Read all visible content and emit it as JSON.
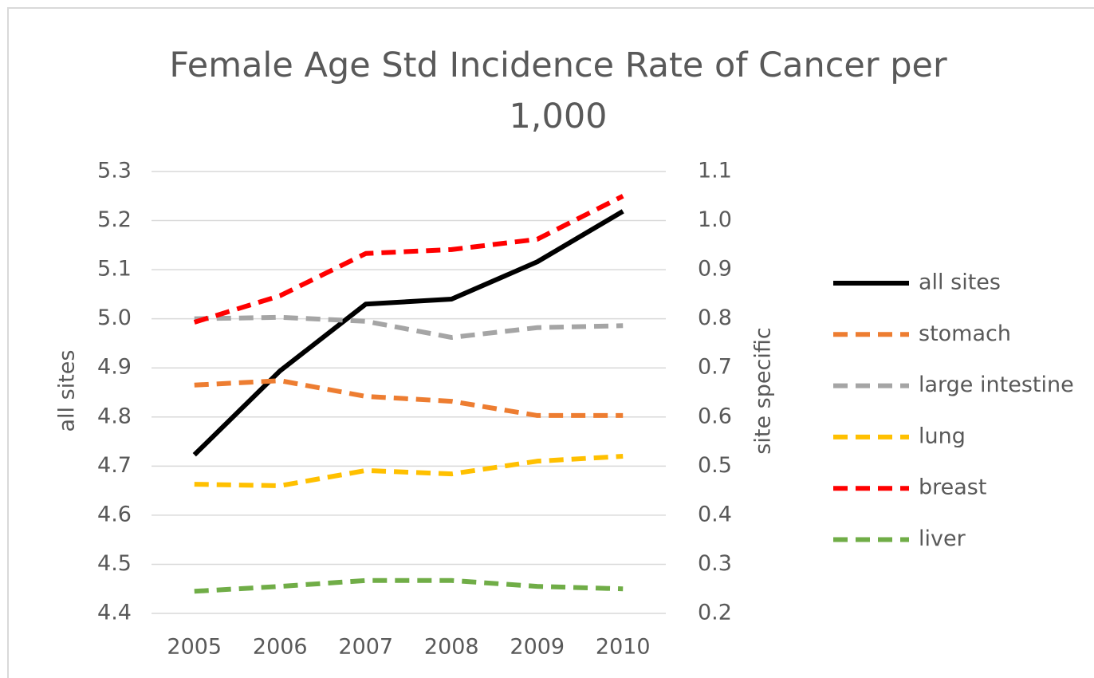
{
  "chart_data": {
    "type": "line",
    "title": "Female Age Std Incidence Rate of Cancer per 1,000",
    "categories": [
      "2005",
      "2006",
      "2007",
      "2008",
      "2009",
      "2010"
    ],
    "ylabel": "all sites",
    "y2label": "site specific",
    "ylim": [
      4.4,
      5.3
    ],
    "yticks": [
      4.4,
      4.5,
      4.6,
      4.7,
      4.8,
      4.9,
      {
        "value": 5,
        "label": "5.0"
      },
      5.1,
      5.2,
      5.3
    ],
    "y2lim": [
      0.2,
      1.1
    ],
    "y2ticks": [
      0.2,
      0.3,
      0.4,
      0.5,
      0.6,
      0.7,
      0.8,
      0.9,
      {
        "value": 1,
        "label": "1.0"
      },
      1.1
    ],
    "grid": true,
    "legend": "right",
    "series": [
      {
        "name": "all sites",
        "color": "#000000",
        "dashed": false,
        "values": [
          4.723,
          4.894,
          5.03,
          5.04,
          5.116,
          5.219
        ]
      },
      {
        "name": "stomach",
        "color": "#ed7d31",
        "dashed": true,
        "axis": "y2",
        "values": [
          0.665,
          0.674,
          0.642,
          0.632,
          0.603,
          0.603
        ]
      },
      {
        "name": "large intestine",
        "color": "#a5a5a5",
        "dashed": true,
        "axis": "y2",
        "values": [
          0.8,
          0.803,
          0.795,
          0.762,
          0.782,
          0.786
        ]
      },
      {
        "name": "lung",
        "color": "#ffc000",
        "dashed": true,
        "axis": "y2",
        "values": [
          0.463,
          0.46,
          0.491,
          0.484,
          0.51,
          0.52
        ]
      },
      {
        "name": "breast",
        "color": "#ff0000",
        "dashed": true,
        "axis": "y2",
        "values": [
          0.793,
          0.847,
          0.933,
          0.941,
          0.962,
          1.05
        ]
      },
      {
        "name": "liver",
        "color": "#70ad47",
        "dashed": true,
        "axis": "y2",
        "values": [
          0.245,
          0.255,
          0.267,
          0.267,
          0.255,
          0.25
        ]
      }
    ]
  }
}
